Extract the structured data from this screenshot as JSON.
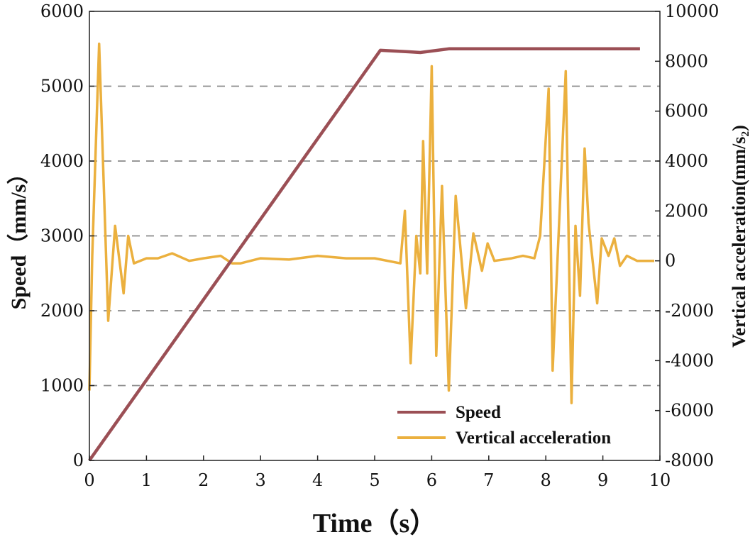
{
  "chart_data": {
    "type": "line",
    "title": "",
    "xlabel": "Time（s）",
    "ylabel": "Speed（mm/s）",
    "y2label": "Vertical acceleration(mm/s₂)",
    "xlim": [
      0,
      10
    ],
    "ylim": [
      0,
      6000
    ],
    "y2lim": [
      -8000,
      10000
    ],
    "xticks": [
      "0",
      "1",
      "2",
      "3",
      "4",
      "5",
      "6",
      "7",
      "8",
      "9",
      "10"
    ],
    "yticks": [
      "0",
      "1000",
      "2000",
      "3000",
      "4000",
      "5000",
      "6000"
    ],
    "y2ticks": [
      "-8000",
      "-6000",
      "-4000",
      "-2000",
      "0",
      "2000",
      "4000",
      "6000",
      "8000",
      "10000"
    ],
    "xtick_values": [
      0,
      1,
      2,
      3,
      4,
      5,
      6,
      7,
      8,
      9,
      10
    ],
    "ytick_values": [
      0,
      1000,
      2000,
      3000,
      4000,
      5000,
      6000
    ],
    "y2tick_values": [
      -8000,
      -6000,
      -4000,
      -2000,
      0,
      2000,
      4000,
      6000,
      8000,
      10000
    ],
    "gridlines_y": [
      1000,
      2000,
      3000,
      4000,
      5000
    ],
    "grid_style": "dashed horizontal",
    "legend_position": "bottom-right",
    "series": [
      {
        "name": "Speed",
        "axis": "left",
        "color": "#9b4f55",
        "x": [
          0,
          5.1,
          5.6,
          5.8,
          6.3,
          9.65
        ],
        "y": [
          0,
          5480,
          5460,
          5450,
          5500,
          5500
        ]
      },
      {
        "name": "Vertical acceleration",
        "axis": "right",
        "color": "#ebb03e",
        "x": [
          0,
          0.05,
          0.17,
          0.33,
          0.45,
          0.6,
          0.68,
          0.78,
          1.0,
          1.2,
          1.45,
          1.75,
          2.0,
          2.3,
          2.5,
          2.65,
          3.0,
          3.5,
          4.0,
          4.5,
          5.0,
          5.45,
          5.53,
          5.63,
          5.73,
          5.8,
          5.85,
          5.92,
          6.0,
          6.08,
          6.18,
          6.3,
          6.42,
          6.6,
          6.73,
          6.88,
          6.98,
          7.1,
          7.4,
          7.6,
          7.8,
          7.9,
          8.05,
          8.12,
          8.2,
          8.35,
          8.45,
          8.52,
          8.6,
          8.68,
          8.75,
          8.9,
          8.98,
          9.1,
          9.2,
          9.3,
          9.42,
          9.6,
          9.9
        ],
        "y": [
          -5200,
          200,
          8700,
          -2400,
          1400,
          -1300,
          1000,
          -100,
          100,
          100,
          300,
          0,
          100,
          200,
          -100,
          -100,
          100,
          50,
          200,
          100,
          100,
          -100,
          2000,
          -4100,
          1000,
          -500,
          4800,
          -500,
          7800,
          -3800,
          3000,
          -5200,
          2600,
          -1900,
          1100,
          -400,
          700,
          0,
          100,
          200,
          100,
          1000,
          6900,
          -4400,
          -200,
          7600,
          -5700,
          1400,
          -1400,
          4500,
          1500,
          -1700,
          900,
          200,
          900,
          -200,
          200,
          0,
          0
        ]
      }
    ]
  }
}
